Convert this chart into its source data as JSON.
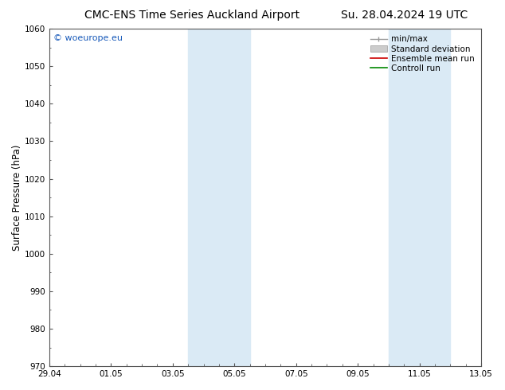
{
  "title_left": "CMC-ENS Time Series Auckland Airport",
  "title_right": "Su. 28.04.2024 19 UTC",
  "ylabel": "Surface Pressure (hPa)",
  "ylim": [
    970,
    1060
  ],
  "yticks": [
    970,
    980,
    990,
    1000,
    1010,
    1020,
    1030,
    1040,
    1050,
    1060
  ],
  "xtick_labels": [
    "29.04",
    "01.05",
    "03.05",
    "05.05",
    "07.05",
    "09.05",
    "11.05",
    "13.05"
  ],
  "xtick_positions": [
    0,
    2,
    4,
    6,
    8,
    10,
    12,
    14
  ],
  "xlim": [
    0,
    14
  ],
  "shaded_bands": [
    {
      "x_start": 4.5,
      "x_end": 5.5
    },
    {
      "x_start": 5.5,
      "x_end": 6.5
    },
    {
      "x_start": 11.0,
      "x_end": 12.0
    },
    {
      "x_start": 12.0,
      "x_end": 13.0
    }
  ],
  "shaded_color": "#daeaf5",
  "background_color": "#ffffff",
  "watermark_text": "© woeurope.eu",
  "watermark_color": "#1a5bba",
  "title_fontsize": 10,
  "tick_fontsize": 7.5,
  "legend_fontsize": 7.5,
  "ylabel_fontsize": 8.5
}
